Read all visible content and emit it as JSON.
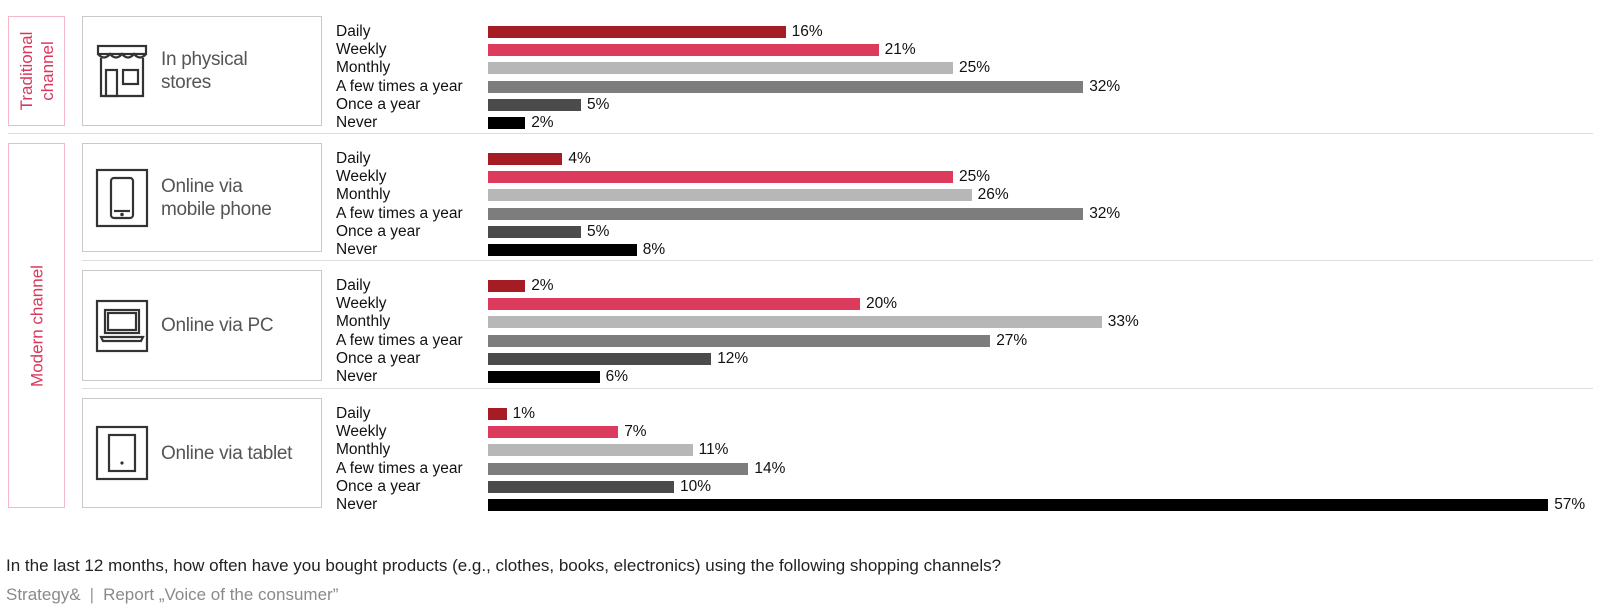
{
  "chart_data": {
    "type": "bar",
    "orientation": "horizontal",
    "categories": [
      "Daily",
      "Weekly",
      "Monthly",
      "A few times a year",
      "Once a year",
      "Never"
    ],
    "category_colors": [
      "#a51c24",
      "#dc3b5d",
      "#b7b7b7",
      "#7d7d7d",
      "#4b4b4b",
      "#000000"
    ],
    "value_suffix": "%",
    "xlim": [
      0,
      57
    ],
    "groups": [
      {
        "label": "Traditional\nchannel",
        "channels": [
          0
        ]
      },
      {
        "label": "Modern channel",
        "channels": [
          1,
          2,
          3
        ]
      }
    ],
    "series": [
      {
        "name": "In physical\nstores",
        "icon": "store-icon",
        "values": [
          16,
          21,
          25,
          32,
          5,
          2
        ]
      },
      {
        "name": "Online via\nmobile phone",
        "icon": "mobile-phone-icon",
        "values": [
          4,
          25,
          26,
          32,
          5,
          8
        ]
      },
      {
        "name": "Online via PC",
        "icon": "laptop-icon",
        "values": [
          2,
          20,
          33,
          27,
          12,
          6
        ]
      },
      {
        "name": "Online via tablet",
        "icon": "tablet-icon",
        "values": [
          1,
          7,
          11,
          14,
          10,
          57
        ]
      }
    ]
  },
  "caption": "In the last 12 months, how often have you bought products (e.g., clothes, books, electronics) using the following shopping channels?",
  "footer": {
    "brand": "Strategy&",
    "separator": "|",
    "report": "Report „Voice of the consumer”"
  }
}
